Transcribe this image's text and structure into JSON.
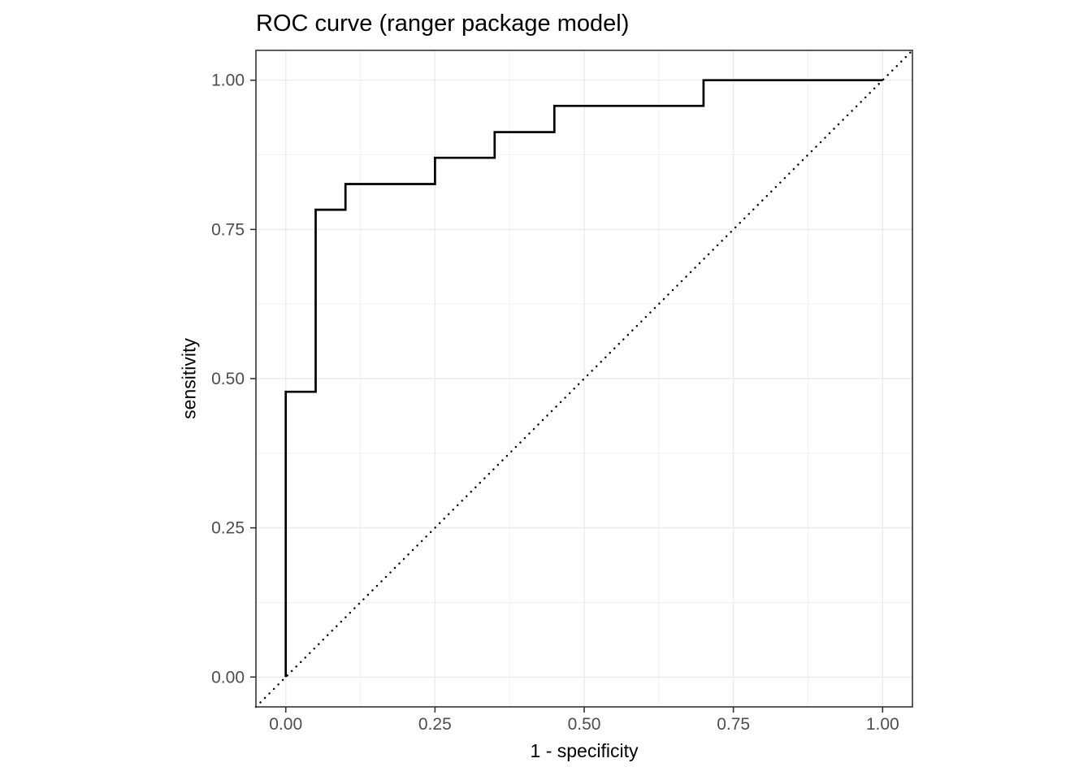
{
  "chart_data": {
    "type": "line",
    "subtype": "roc_step_curve",
    "title": "ROC curve (ranger package model)",
    "xlabel": "1 - specificity",
    "ylabel": "sensitivity",
    "xlim": [
      -0.05,
      1.05
    ],
    "ylim": [
      -0.05,
      1.05
    ],
    "x_major_ticks": [
      0.0,
      0.25,
      0.5,
      0.75,
      1.0
    ],
    "x_tick_labels": [
      "0.00",
      "0.25",
      "0.50",
      "0.75",
      "1.00"
    ],
    "y_major_ticks": [
      0.0,
      0.25,
      0.5,
      0.75,
      1.0
    ],
    "y_tick_labels": [
      "0.00",
      "0.25",
      "0.50",
      "0.75",
      "1.00"
    ],
    "x_minor_ticks": [
      0.125,
      0.375,
      0.625,
      0.875
    ],
    "y_minor_ticks": [
      0.125,
      0.375,
      0.625,
      0.875
    ],
    "grid": true,
    "legend": "none",
    "series": [
      {
        "name": "roc-step-curve",
        "style": "solid_step",
        "color": "#000000",
        "points": [
          [
            0.0,
            0.0
          ],
          [
            0.0,
            0.478
          ],
          [
            0.05,
            0.478
          ],
          [
            0.05,
            0.783
          ],
          [
            0.1,
            0.783
          ],
          [
            0.1,
            0.826
          ],
          [
            0.25,
            0.826
          ],
          [
            0.25,
            0.87
          ],
          [
            0.35,
            0.87
          ],
          [
            0.35,
            0.913
          ],
          [
            0.45,
            0.913
          ],
          [
            0.45,
            0.957
          ],
          [
            0.7,
            0.957
          ],
          [
            0.7,
            1.0
          ],
          [
            1.0,
            1.0
          ]
        ]
      },
      {
        "name": "chance-diagonal",
        "style": "dotted",
        "color": "#000000",
        "points": [
          [
            -0.05,
            -0.05
          ],
          [
            1.05,
            1.05
          ]
        ]
      }
    ],
    "colors": {
      "background": "#ffffff",
      "panel_background": "#ffffff",
      "panel_border": "#333333",
      "grid_major": "#ebebeb",
      "grid_minor": "#f0f0f0",
      "tick_mark": "#333333",
      "axis_text": "#4d4d4d",
      "title_text": "#000000",
      "curve": "#000000"
    }
  }
}
